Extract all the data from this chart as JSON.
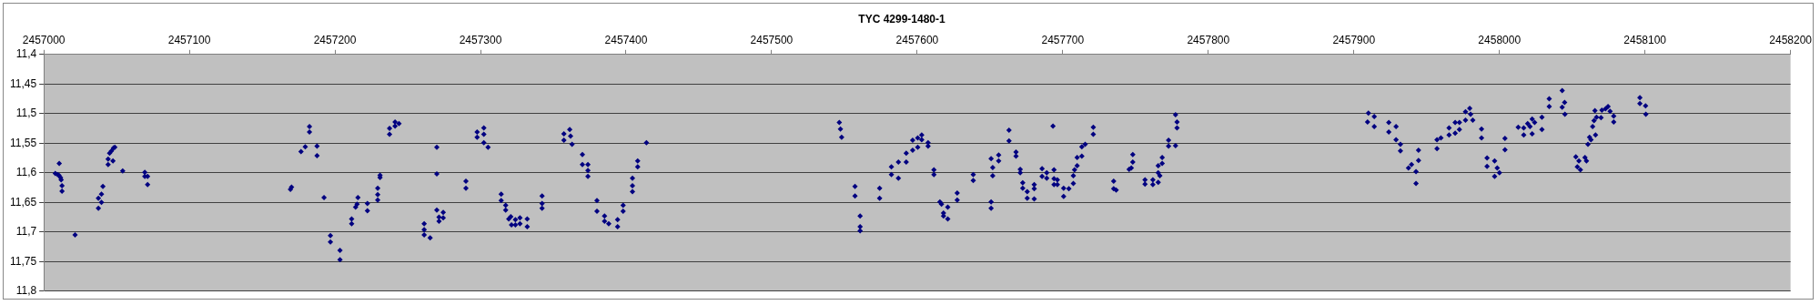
{
  "chart_data": {
    "type": "scatter",
    "title": "TYC 4299-1480-1",
    "color": "#000080",
    "marker": "diamond",
    "grid": "y",
    "legend": false,
    "x": [
      2457007.9,
      2457009.4,
      2457010.6,
      2457010.4,
      2457011.5,
      2457011.9,
      2457012.5,
      2457012.5,
      2457021.5,
      2457037.5,
      2457037.5,
      2457039.6,
      2457039.6,
      2457040.6,
      2457044.2,
      2457044.2,
      2457045.2,
      2457046.5,
      2457047.5,
      2457047.9,
      2457048.8,
      2457054.2,
      2457069.4,
      2457069.4,
      2457071.3,
      2457071.3,
      2457169.4,
      2457170.2,
      2457176.7,
      2457179.6,
      2457182.5,
      2457182.5,
      2457187.7,
      2457187.7,
      2457192.5,
      2457196.9,
      2457196.9,
      2457203.5,
      2457203.5,
      2457211.5,
      2457211.5,
      2457214.2,
      2457215.2,
      2457215.8,
      2457222.3,
      2457222.3,
      2457229.4,
      2457229.4,
      2457229.4,
      2457231.0,
      2457231.0,
      2457237.5,
      2457237.5,
      2457241.3,
      2457241.3,
      2457244.0,
      2457261.3,
      2457261.3,
      2457261.3,
      2457265.4,
      2457270.0,
      2457270.0,
      2457270.0,
      2457271.5,
      2457271.5,
      2457274.4,
      2457274.4,
      2457290.0,
      2457290.0,
      2457297.7,
      2457297.7,
      2457302.3,
      2457302.3,
      2457302.3,
      2457305.2,
      2457314.2,
      2457314.2,
      2457317.3,
      2457317.3,
      2457319.4,
      2457320.8,
      2457321.3,
      2457324.0,
      2457324.0,
      2457327.1,
      2457327.1,
      2457332.1,
      2457332.1,
      2457342.3,
      2457342.3,
      2457342.3,
      2457357.3,
      2457357.3,
      2457361.3,
      2457361.9,
      2457362.9,
      2457370.0,
      2457370.0,
      2457373.8,
      2457373.8,
      2457373.8,
      2457380.0,
      2457380.0,
      2457385.2,
      2457385.2,
      2457388.1,
      2457394.2,
      2457394.2,
      2457398.0,
      2457398.0,
      2457404.4,
      2457404.4,
      2457404.4,
      2457408.0,
      2457408.0,
      2457414.0,
      2457546.5,
      2457547.3,
      2457548.1,
      2457557.3,
      2457557.3,
      2457560.8,
      2457560.8,
      2457560.8,
      2457574.2,
      2457574.2,
      2457582.3,
      2457582.3,
      2457587.1,
      2457587.1,
      2457592.5,
      2457592.5,
      2457596.9,
      2457596.9,
      2457600.4,
      2457600.4,
      2457603.1,
      2457603.1,
      2457607.5,
      2457607.5,
      2457611.5,
      2457611.5,
      2457615.6,
      2457616.7,
      2457618.1,
      2457618.1,
      2457621.0,
      2457621.0,
      2457627.5,
      2457627.5,
      2457638.5,
      2457638.5,
      2457650.8,
      2457651.9,
      2457651.9,
      2457650.8,
      2457650.8,
      2457656.0,
      2457656.0,
      2457663.1,
      2457663.1,
      2457667.9,
      2457667.9,
      2457670.8,
      2457670.8,
      2457672.5,
      2457672.5,
      2457675.6,
      2457675.6,
      2457680.4,
      2457680.4,
      2457680.4,
      2457685.8,
      2457685.8,
      2457689.0,
      2457689.0,
      2457693.3,
      2457694.0,
      2457694.0,
      2457694.0,
      2457696.3,
      2457696.3,
      2457700.6,
      2457700.6,
      2457704.2,
      2457707.3,
      2457707.3,
      2457708.1,
      2457709.9,
      2457709.9,
      2457713.1,
      2457713.1,
      2457715.4,
      2457721.0,
      2457721.0,
      2457735.0,
      2457736.7,
      2457735.0,
      2457745.6,
      2457747.1,
      2457748.1,
      2457748.1,
      2457756.5,
      2457756.5,
      2457761.9,
      2457761.9,
      2457765.6,
      2457765.6,
      2457765.6,
      2457766.7,
      2457768.3,
      2457768.3,
      2457772.7,
      2457772.7,
      2457777.5,
      2457778.5,
      2457778.5,
      2457777.5,
      2457910.0,
      2457909.4,
      2457914.0,
      2457914.0,
      2457924.0,
      2457924.0,
      2457929.0,
      2457929.0,
      2457932.0,
      2457932.0,
      2457937.5,
      2457939.6,
      2457942.7,
      2457942.7,
      2457944.4,
      2457944.4,
      2457957.1,
      2457957.1,
      2457959.8,
      2457965.4,
      2457965.4,
      2457969.6,
      2457969.6,
      2457972.5,
      2457972.5,
      2457976.7,
      2457976.7,
      2457979.6,
      2457980.2,
      2457981.7,
      2457987.7,
      2457987.7,
      2457991.5,
      2457991.5,
      2457996.7,
      2457996.7,
      2457998.5,
      2458000.0,
      2458003.8,
      2458003.8,
      2458012.9,
      2458016.7,
      2458016.7,
      2458019.4,
      2458021.0,
      2458022.5,
      2458022.5,
      2458024.2,
      2458029.2,
      2458029.2,
      2458034.2,
      2458034.2,
      2458043.1,
      2458043.1,
      2458044.8,
      2458045.0,
      2458052.5,
      2458053.5,
      2458054.6,
      2458055.6,
      2458058.8,
      2458059.8,
      2458060.8,
      2458061.9,
      2458062.9,
      2458064.0,
      2458065.0,
      2458065.6,
      2458066.0,
      2458066.7,
      2458069.8,
      2458070.4,
      2458072.9,
      2458074.6,
      2458076.0,
      2458078.5,
      2458078.5,
      2458096.5,
      2458096.5,
      2458100.4,
      2458100.6
    ],
    "values": [
      11.601,
      11.603,
      11.584,
      11.604,
      11.608,
      11.612,
      11.622,
      11.631,
      11.705,
      11.643,
      11.66,
      11.65,
      11.636,
      11.623,
      11.586,
      11.577,
      11.567,
      11.563,
      11.58,
      11.558,
      11.557,
      11.597,
      11.599,
      11.606,
      11.606,
      11.62,
      11.628,
      11.624,
      11.564,
      11.556,
      11.522,
      11.531,
      11.555,
      11.571,
      11.642,
      11.706,
      11.717,
      11.731,
      11.747,
      11.678,
      11.686,
      11.658,
      11.653,
      11.642,
      11.652,
      11.664,
      11.626,
      11.637,
      11.646,
      11.604,
      11.608,
      11.525,
      11.535,
      11.514,
      11.521,
      11.517,
      11.686,
      11.696,
      11.705,
      11.71,
      11.557,
      11.602,
      11.663,
      11.675,
      11.682,
      11.667,
      11.676,
      11.614,
      11.626,
      11.531,
      11.54,
      11.524,
      11.535,
      11.549,
      11.557,
      11.636,
      11.647,
      11.655,
      11.663,
      11.678,
      11.674,
      11.688,
      11.679,
      11.688,
      11.676,
      11.686,
      11.678,
      11.691,
      11.639,
      11.652,
      11.66,
      11.534,
      11.545,
      11.527,
      11.538,
      11.552,
      11.569,
      11.586,
      11.586,
      11.596,
      11.606,
      11.647,
      11.665,
      11.673,
      11.682,
      11.686,
      11.679,
      11.691,
      11.655,
      11.665,
      11.609,
      11.622,
      11.632,
      11.58,
      11.59,
      11.549,
      11.515,
      11.526,
      11.54,
      11.623,
      11.639,
      11.673,
      11.691,
      11.698,
      11.626,
      11.643,
      11.59,
      11.603,
      11.582,
      11.609,
      11.567,
      11.582,
      11.545,
      11.562,
      11.541,
      11.557,
      11.536,
      11.544,
      11.549,
      11.555,
      11.595,
      11.603,
      11.649,
      11.653,
      11.668,
      11.673,
      11.658,
      11.678,
      11.634,
      11.646,
      11.603,
      11.613,
      11.576,
      11.591,
      11.605,
      11.649,
      11.66,
      11.57,
      11.58,
      11.528,
      11.546,
      11.565,
      11.572,
      11.594,
      11.6,
      11.617,
      11.626,
      11.632,
      11.643,
      11.62,
      11.627,
      11.644,
      11.593,
      11.606,
      11.6,
      11.609,
      11.521,
      11.595,
      11.61,
      11.62,
      11.612,
      11.62,
      11.626,
      11.64,
      11.627,
      11.618,
      11.605,
      11.595,
      11.574,
      11.588,
      11.556,
      11.572,
      11.552,
      11.523,
      11.535,
      11.614,
      11.629,
      11.627,
      11.594,
      11.592,
      11.569,
      11.582,
      11.612,
      11.619,
      11.612,
      11.62,
      11.588,
      11.6,
      11.616,
      11.605,
      11.574,
      11.584,
      11.545,
      11.555,
      11.502,
      11.514,
      11.524,
      11.554,
      11.499,
      11.514,
      11.505,
      11.522,
      11.515,
      11.531,
      11.522,
      11.544,
      11.552,
      11.563,
      11.592,
      11.586,
      11.598,
      11.618,
      11.562,
      11.579,
      11.544,
      11.559,
      11.541,
      11.524,
      11.536,
      11.515,
      11.533,
      11.515,
      11.527,
      11.511,
      11.497,
      11.491,
      11.501,
      11.511,
      11.526,
      11.541,
      11.575,
      11.589,
      11.58,
      11.606,
      11.592,
      11.6,
      11.542,
      11.561,
      11.523,
      11.524,
      11.536,
      11.517,
      11.522,
      11.509,
      11.534,
      11.515,
      11.506,
      11.527,
      11.475,
      11.488,
      11.461,
      11.489,
      11.481,
      11.501,
      11.573,
      11.59,
      11.58,
      11.595,
      11.574,
      11.58,
      11.552,
      11.54,
      11.544,
      11.522,
      11.512,
      11.495,
      11.536,
      11.506,
      11.507,
      11.494,
      11.492,
      11.488,
      11.496,
      11.504,
      11.514,
      11.473,
      11.483,
      11.487,
      11.501
    ],
    "xlim": [
      2457000,
      2458200
    ],
    "xticks": [
      2457000,
      2457100,
      2457200,
      2457300,
      2457400,
      2457500,
      2457600,
      2457700,
      2457800,
      2457900,
      2458000,
      2458100,
      2458200
    ],
    "ylim": [
      11.8,
      11.4
    ],
    "yticks": [
      {
        "value": 11.4,
        "label": "11,4"
      },
      {
        "value": 11.45,
        "label": "11,45"
      },
      {
        "value": 11.5,
        "label": "11,5"
      },
      {
        "value": 11.55,
        "label": "11,55"
      },
      {
        "value": 11.6,
        "label": "11,6"
      },
      {
        "value": 11.65,
        "label": "11,65"
      },
      {
        "value": 11.7,
        "label": "11,7"
      },
      {
        "value": 11.75,
        "label": "11,75"
      },
      {
        "value": 11.8,
        "label": "11,8"
      }
    ]
  }
}
